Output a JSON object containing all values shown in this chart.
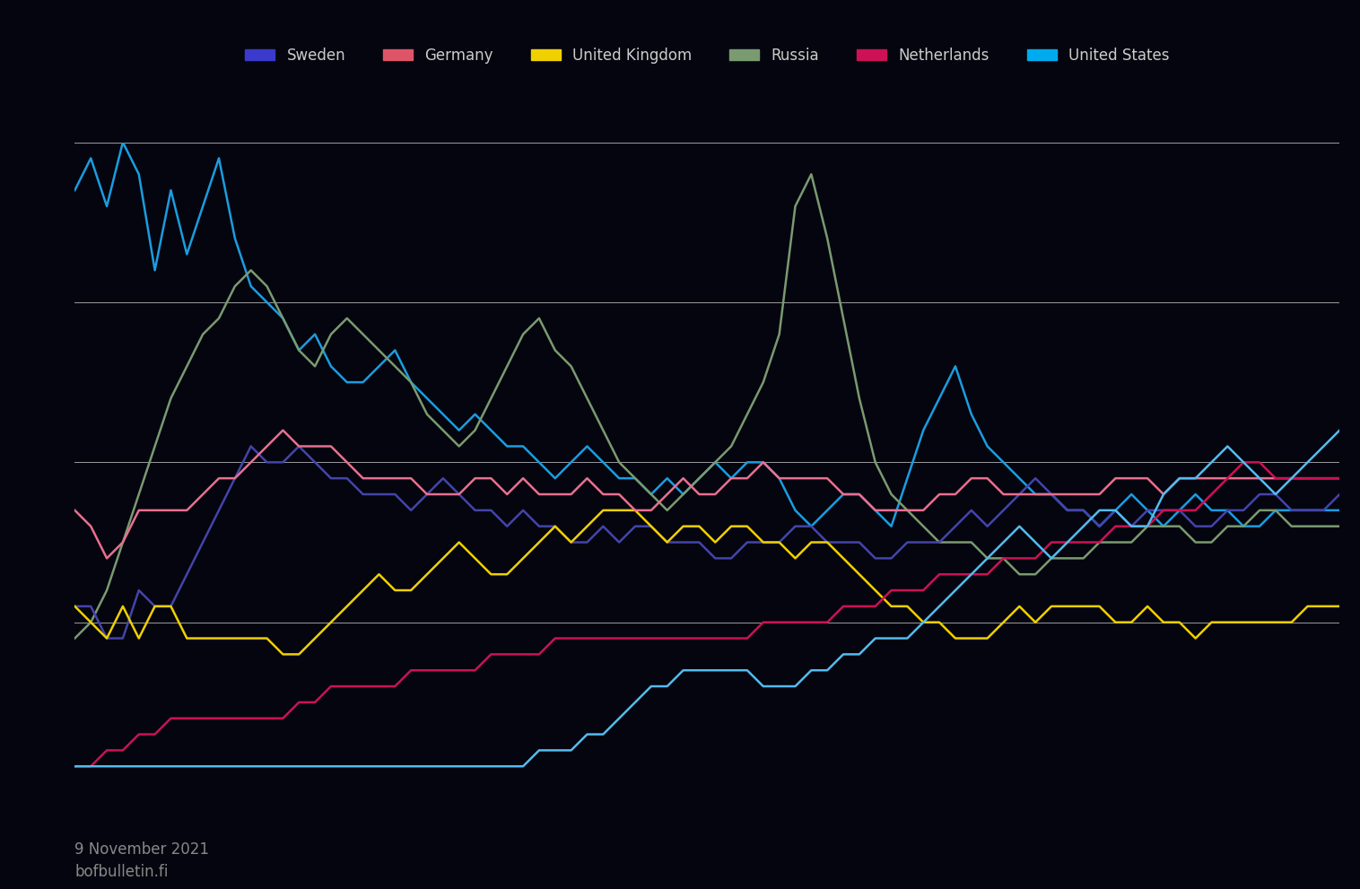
{
  "background_color": "#05050f",
  "plot_bg_color": "#05050f",
  "text_color": "#cccccc",
  "grid_color": "#ffffff",
  "date_label": "9 November 2021\nbofbulletin.fi",
  "legend_items": [
    {
      "label": "Sweden",
      "color": "#3a3acc"
    },
    {
      "label": "Germany",
      "color": "#dd5566"
    },
    {
      "label": "United Kingdom",
      "color": "#f0d000"
    },
    {
      "label": "Russia",
      "color": "#7a9a70"
    },
    {
      "label": "Netherlands",
      "color": "#cc1155"
    },
    {
      "label": "United States",
      "color": "#00aaee"
    }
  ],
  "line_specs": [
    {
      "name": "cyan_blue",
      "color": "#1a9de0",
      "lw": 1.8
    },
    {
      "name": "olive_green",
      "color": "#7a9a70",
      "lw": 1.8
    },
    {
      "name": "purple",
      "color": "#4444aa",
      "lw": 1.8
    },
    {
      "name": "yellow",
      "color": "#f0d000",
      "lw": 1.8
    },
    {
      "name": "pink",
      "color": "#e87090",
      "lw": 1.8
    },
    {
      "name": "magenta",
      "color": "#cc1155",
      "lw": 1.8
    },
    {
      "name": "light_blue",
      "color": "#55bbee",
      "lw": 1.8
    }
  ],
  "ylim": [
    0,
    20
  ],
  "ytick_positions": [
    0,
    5,
    10,
    15,
    20
  ],
  "series": {
    "cyan_blue": [
      18.5,
      19.5,
      18.0,
      20.0,
      19.0,
      16.0,
      18.5,
      16.5,
      18.0,
      19.5,
      17.0,
      15.5,
      15.0,
      14.5,
      13.5,
      14.0,
      13.0,
      12.5,
      12.5,
      13.0,
      13.5,
      12.5,
      12.0,
      11.5,
      11.0,
      11.5,
      11.0,
      10.5,
      10.5,
      10.0,
      9.5,
      10.0,
      10.5,
      10.0,
      9.5,
      9.5,
      9.0,
      9.5,
      9.0,
      9.5,
      10.0,
      9.5,
      10.0,
      10.0,
      9.5,
      8.5,
      8.0,
      8.5,
      9.0,
      9.0,
      8.5,
      8.0,
      9.5,
      11.0,
      12.0,
      13.0,
      11.5,
      10.5,
      10.0,
      9.5,
      9.0,
      9.0,
      8.5,
      8.5,
      8.0,
      8.5,
      9.0,
      8.5,
      8.0,
      8.5,
      9.0,
      8.5,
      8.5,
      8.0,
      8.0,
      8.5,
      8.5,
      8.5,
      8.5,
      8.5
    ],
    "olive_green": [
      4.5,
      5.0,
      6.0,
      7.5,
      9.0,
      10.5,
      12.0,
      13.0,
      14.0,
      14.5,
      15.5,
      16.0,
      15.5,
      14.5,
      13.5,
      13.0,
      14.0,
      14.5,
      14.0,
      13.5,
      13.0,
      12.5,
      11.5,
      11.0,
      10.5,
      11.0,
      12.0,
      13.0,
      14.0,
      14.5,
      13.5,
      13.0,
      12.0,
      11.0,
      10.0,
      9.5,
      9.0,
      8.5,
      9.0,
      9.5,
      10.0,
      10.5,
      11.5,
      12.5,
      14.0,
      18.0,
      19.0,
      17.0,
      14.5,
      12.0,
      10.0,
      9.0,
      8.5,
      8.0,
      7.5,
      7.5,
      7.5,
      7.0,
      7.0,
      6.5,
      6.5,
      7.0,
      7.0,
      7.0,
      7.5,
      7.5,
      7.5,
      8.0,
      8.0,
      8.0,
      7.5,
      7.5,
      8.0,
      8.0,
      8.5,
      8.5,
      8.0,
      8.0,
      8.0,
      8.0
    ],
    "purple": [
      5.5,
      5.5,
      4.5,
      4.5,
      6.0,
      5.5,
      5.5,
      6.5,
      7.5,
      8.5,
      9.5,
      10.5,
      10.0,
      10.0,
      10.5,
      10.0,
      9.5,
      9.5,
      9.0,
      9.0,
      9.0,
      8.5,
      9.0,
      9.5,
      9.0,
      8.5,
      8.5,
      8.0,
      8.5,
      8.0,
      8.0,
      7.5,
      7.5,
      8.0,
      7.5,
      8.0,
      8.0,
      7.5,
      7.5,
      7.5,
      7.0,
      7.0,
      7.5,
      7.5,
      7.5,
      8.0,
      8.0,
      7.5,
      7.5,
      7.5,
      7.0,
      7.0,
      7.5,
      7.5,
      7.5,
      8.0,
      8.5,
      8.0,
      8.5,
      9.0,
      9.5,
      9.0,
      8.5,
      8.5,
      8.0,
      8.5,
      8.0,
      8.5,
      8.5,
      8.5,
      8.0,
      8.0,
      8.5,
      8.5,
      9.0,
      9.0,
      8.5,
      8.5,
      8.5,
      9.0
    ],
    "yellow": [
      5.5,
      5.0,
      4.5,
      5.5,
      4.5,
      5.5,
      5.5,
      4.5,
      4.5,
      4.5,
      4.5,
      4.5,
      4.5,
      4.0,
      4.0,
      4.5,
      5.0,
      5.5,
      6.0,
      6.5,
      6.0,
      6.0,
      6.5,
      7.0,
      7.5,
      7.0,
      6.5,
      6.5,
      7.0,
      7.5,
      8.0,
      7.5,
      8.0,
      8.5,
      8.5,
      8.5,
      8.0,
      7.5,
      8.0,
      8.0,
      7.5,
      8.0,
      8.0,
      7.5,
      7.5,
      7.0,
      7.5,
      7.5,
      7.0,
      6.5,
      6.0,
      5.5,
      5.5,
      5.0,
      5.0,
      4.5,
      4.5,
      4.5,
      5.0,
      5.5,
      5.0,
      5.5,
      5.5,
      5.5,
      5.5,
      5.0,
      5.0,
      5.5,
      5.0,
      5.0,
      4.5,
      5.0,
      5.0,
      5.0,
      5.0,
      5.0,
      5.0,
      5.5,
      5.5,
      5.5
    ],
    "pink": [
      8.5,
      8.0,
      7.0,
      7.5,
      8.5,
      8.5,
      8.5,
      8.5,
      9.0,
      9.5,
      9.5,
      10.0,
      10.5,
      11.0,
      10.5,
      10.5,
      10.5,
      10.0,
      9.5,
      9.5,
      9.5,
      9.5,
      9.0,
      9.0,
      9.0,
      9.5,
      9.5,
      9.0,
      9.5,
      9.0,
      9.0,
      9.0,
      9.5,
      9.0,
      9.0,
      8.5,
      8.5,
      9.0,
      9.5,
      9.0,
      9.0,
      9.5,
      9.5,
      10.0,
      9.5,
      9.5,
      9.5,
      9.5,
      9.0,
      9.0,
      8.5,
      8.5,
      8.5,
      8.5,
      9.0,
      9.0,
      9.5,
      9.5,
      9.0,
      9.0,
      9.0,
      9.0,
      9.0,
      9.0,
      9.0,
      9.5,
      9.5,
      9.5,
      9.0,
      9.5,
      9.5,
      9.5,
      9.5,
      9.5,
      9.5,
      9.5,
      9.5,
      9.5,
      9.5,
      9.5
    ],
    "magenta": [
      0.5,
      0.5,
      1.0,
      1.0,
      1.5,
      1.5,
      2.0,
      2.0,
      2.0,
      2.0,
      2.0,
      2.0,
      2.0,
      2.0,
      2.5,
      2.5,
      3.0,
      3.0,
      3.0,
      3.0,
      3.0,
      3.5,
      3.5,
      3.5,
      3.5,
      3.5,
      4.0,
      4.0,
      4.0,
      4.0,
      4.5,
      4.5,
      4.5,
      4.5,
      4.5,
      4.5,
      4.5,
      4.5,
      4.5,
      4.5,
      4.5,
      4.5,
      4.5,
      5.0,
      5.0,
      5.0,
      5.0,
      5.0,
      5.5,
      5.5,
      5.5,
      6.0,
      6.0,
      6.0,
      6.5,
      6.5,
      6.5,
      6.5,
      7.0,
      7.0,
      7.0,
      7.5,
      7.5,
      7.5,
      7.5,
      8.0,
      8.0,
      8.0,
      8.5,
      8.5,
      8.5,
      9.0,
      9.5,
      10.0,
      10.0,
      9.5,
      9.5,
      9.5,
      9.5,
      9.5
    ],
    "light_blue": [
      0.5,
      0.5,
      0.5,
      0.5,
      0.5,
      0.5,
      0.5,
      0.5,
      0.5,
      0.5,
      0.5,
      0.5,
      0.5,
      0.5,
      0.5,
      0.5,
      0.5,
      0.5,
      0.5,
      0.5,
      0.5,
      0.5,
      0.5,
      0.5,
      0.5,
      0.5,
      0.5,
      0.5,
      0.5,
      1.0,
      1.0,
      1.0,
      1.5,
      1.5,
      2.0,
      2.5,
      3.0,
      3.0,
      3.5,
      3.5,
      3.5,
      3.5,
      3.5,
      3.0,
      3.0,
      3.0,
      3.5,
      3.5,
      4.0,
      4.0,
      4.5,
      4.5,
      4.5,
      5.0,
      5.5,
      6.0,
      6.5,
      7.0,
      7.5,
      8.0,
      7.5,
      7.0,
      7.5,
      8.0,
      8.5,
      8.5,
      8.0,
      8.0,
      9.0,
      9.5,
      9.5,
      10.0,
      10.5,
      10.0,
      9.5,
      9.0,
      9.5,
      10.0,
      10.5,
      11.0
    ]
  }
}
